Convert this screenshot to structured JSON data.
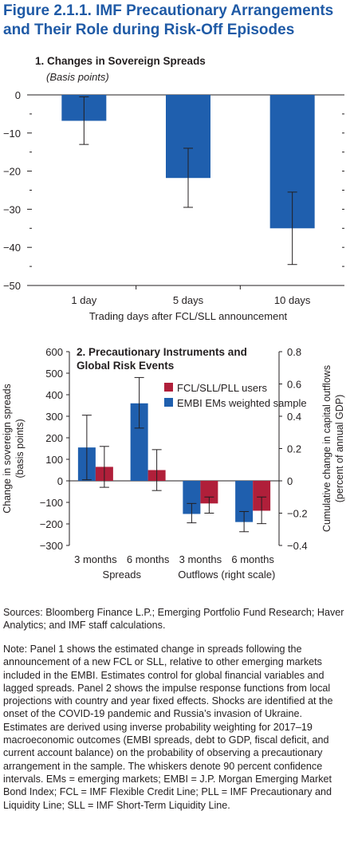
{
  "figure_title": "Figure 2.1.1. IMF Precautionary Arrangements and Their Role during Risk-Off Episodes",
  "colors": {
    "blue": "#1f5fae",
    "red": "#b01f3a",
    "title_blue": "#1f5aa6"
  },
  "chart_data": [
    {
      "type": "bar",
      "title": "1. Changes in Sovereign Spreads",
      "subtitle": "(Basis points)",
      "xlabel": "Trading days after FCL/SLL announcement",
      "ylabel": "",
      "ylim": [
        -50,
        0
      ],
      "yticks": [
        "0",
        "−10",
        "−20",
        "−30",
        "−40",
        "−50"
      ],
      "ytick_values": [
        0,
        -10,
        -20,
        -30,
        -40,
        -50
      ],
      "categories": [
        "1 day",
        "5 days",
        "10 days"
      ],
      "series": [
        {
          "values": [
            -6.8,
            -21.8,
            -35.0
          ],
          "err_low": [
            -13.0,
            -29.5,
            -44.5
          ],
          "err_high": [
            -0.5,
            -14.0,
            -25.5
          ]
        }
      ],
      "grid": false
    },
    {
      "type": "bar",
      "title": "2. Precautionary Instruments and Global Risk Events",
      "ylabel": "Change in sovereign spreads (basis points)",
      "ylabel_right": "Cumulative change in capital outflows (percent of annual GDP)",
      "ylim": [
        -300,
        600
      ],
      "ylim_right": [
        -0.4,
        0.8
      ],
      "yticks": [
        "600",
        "500",
        "400",
        "300",
        "200",
        "100",
        "0",
        "−100",
        "−200",
        "−300"
      ],
      "ytick_values": [
        600,
        500,
        400,
        300,
        200,
        100,
        0,
        -100,
        -200,
        -300
      ],
      "yticks_right": [
        "0.8",
        "0.6",
        "0.4",
        "0.2",
        "0",
        "−0.2",
        "−0.4"
      ],
      "ytick_values_right": [
        0.8,
        0.6,
        0.4,
        0.2,
        0,
        -0.2,
        -0.4
      ],
      "categories": [
        "3 months",
        "6 months",
        "3 months",
        "6 months"
      ],
      "groups": [
        "Spreads",
        "Outflows (right scale)"
      ],
      "legend": [
        "FCL/SLL/PLL users",
        "EMBI EMs weighted sample"
      ],
      "legend_position": "top-right",
      "series": [
        {
          "name": "EMBI EMs weighted sample",
          "color": "blue",
          "values": [
            155,
            360,
            -0.205,
            -0.255
          ],
          "err_low": [
            5,
            245,
            -0.26,
            -0.315
          ],
          "err_high": [
            305,
            480,
            -0.14,
            -0.19
          ]
        },
        {
          "name": "FCL/SLL/PLL users",
          "color": "red",
          "values": [
            65,
            50,
            -0.14,
            -0.185
          ],
          "err_low": [
            -30,
            -45,
            -0.2,
            -0.265
          ],
          "err_high": [
            160,
            145,
            -0.1,
            -0.1
          ]
        }
      ],
      "grid": false
    }
  ],
  "sources": "Sources: Bloomberg Finance L.P.; Emerging Portfolio Fund Research; Haver Analytics; and IMF staff calculations.",
  "note": "Note: Panel 1 shows the estimated change in spreads following the announcement of a new FCL or SLL, relative to other emerging markets included in the EMBI. Estimates control for global financial variables and lagged spreads. Panel 2 shows the impulse response functions from local projections with country and year fixed effects. Shocks are identified at the onset of the COVID-19 pandemic and Russia’s invasion of Ukraine. Estimates are derived using inverse probability weighting for 2017–19 macroeconomic outcomes (EMBI spreads, debt to GDP, fiscal deficit, and current account balance) on the probability of observing a precautionary arrangement in the sample. The whiskers denote 90 percent confidence intervals. EMs = emerging markets; EMBI = J.P. Morgan Emerging Market Bond Index; FCL = IMF Flexible Credit Line; PLL = IMF Precautionary and Liquidity Line; SLL = IMF Short-Term Liquidity Line."
}
